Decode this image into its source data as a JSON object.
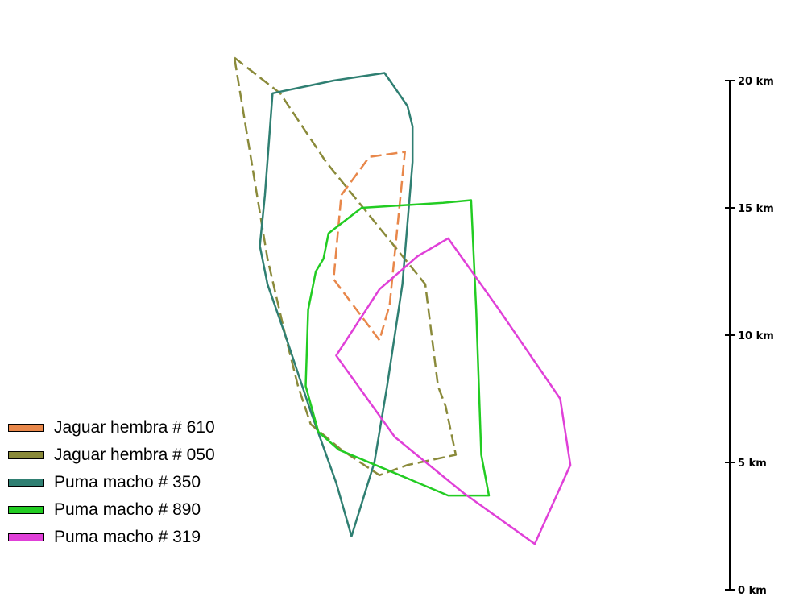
{
  "chart_data": {
    "type": "scatter",
    "scale_axis": {
      "unit": "km",
      "range": [
        0,
        20
      ],
      "ticks": [
        {
          "value": 20,
          "label": "20 km"
        },
        {
          "value": 15,
          "label": "15 km"
        },
        {
          "value": 10,
          "label": "10 km"
        },
        {
          "value": 5,
          "label": "5 km"
        },
        {
          "value": 0,
          "label": "0 km"
        }
      ]
    },
    "series": [
      {
        "name": "Jaguar hembra # 610",
        "color": "#E8874A",
        "line": "dashed",
        "points": [
          [
            4.2,
            15.5
          ],
          [
            5.3,
            17.0
          ],
          [
            6.7,
            17.2
          ],
          [
            6.1,
            11.2
          ],
          [
            5.7,
            9.8
          ],
          [
            3.9,
            12.2
          ]
        ]
      },
      {
        "name": "Jaguar hembra # 050",
        "color": "#8A8A3A",
        "line": "dashed",
        "points": [
          [
            0.0,
            20.9
          ],
          [
            1.8,
            19.5
          ],
          [
            3.6,
            16.8
          ],
          [
            7.5,
            12.0
          ],
          [
            8.0,
            8.0
          ],
          [
            8.3,
            7.2
          ],
          [
            8.7,
            5.3
          ],
          [
            6.8,
            4.9
          ],
          [
            5.7,
            4.5
          ],
          [
            4.2,
            5.5
          ],
          [
            3.0,
            6.5
          ],
          [
            2.5,
            8.0
          ],
          [
            2.0,
            10.0
          ],
          [
            1.3,
            13.0
          ]
        ]
      },
      {
        "name": "Puma macho # 350",
        "color": "#2F7F72",
        "line": "solid",
        "points": [
          [
            1.5,
            19.5
          ],
          [
            3.9,
            20.0
          ],
          [
            5.9,
            20.3
          ],
          [
            6.8,
            19.0
          ],
          [
            7.0,
            18.2
          ],
          [
            7.0,
            16.8
          ],
          [
            6.6,
            12.0
          ],
          [
            6.0,
            8.0
          ],
          [
            5.5,
            5.0
          ],
          [
            4.6,
            2.1
          ],
          [
            4.0,
            4.2
          ],
          [
            3.0,
            7.0
          ],
          [
            2.0,
            10.0
          ],
          [
            1.3,
            12.0
          ],
          [
            1.0,
            13.5
          ],
          [
            1.2,
            15.5
          ]
        ]
      },
      {
        "name": "Puma macho # 890",
        "color": "#22CC22",
        "line": "solid",
        "points": [
          [
            5.0,
            15.0
          ],
          [
            8.2,
            15.2
          ],
          [
            9.3,
            15.3
          ],
          [
            9.5,
            11.0
          ],
          [
            9.7,
            5.3
          ],
          [
            10.0,
            3.7
          ],
          [
            8.4,
            3.7
          ],
          [
            6.5,
            4.5
          ],
          [
            4.1,
            5.5
          ],
          [
            3.3,
            6.2
          ],
          [
            2.8,
            8.0
          ],
          [
            2.9,
            11.0
          ],
          [
            3.2,
            12.5
          ],
          [
            3.5,
            13.0
          ],
          [
            3.7,
            14.0
          ]
        ]
      },
      {
        "name": "Puma macho # 319",
        "color": "#E040D8",
        "line": "solid",
        "points": [
          [
            4.0,
            9.2
          ],
          [
            5.7,
            11.8
          ],
          [
            7.2,
            13.1
          ],
          [
            8.4,
            13.8
          ],
          [
            10.4,
            11.0
          ],
          [
            12.8,
            7.5
          ],
          [
            13.2,
            4.9
          ],
          [
            11.8,
            1.8
          ],
          [
            9.0,
            3.8
          ],
          [
            6.3,
            6.0
          ]
        ]
      }
    ]
  },
  "legend": {
    "items": [
      {
        "label": "Jaguar hembra # 610",
        "color": "#E8874A"
      },
      {
        "label": "Jaguar hembra # 050",
        "color": "#8A8A3A"
      },
      {
        "label": "Puma macho # 350",
        "color": "#2F7F72"
      },
      {
        "label": "Puma macho # 890",
        "color": "#22CC22"
      },
      {
        "label": "Puma macho # 319",
        "color": "#E040D8"
      }
    ]
  }
}
